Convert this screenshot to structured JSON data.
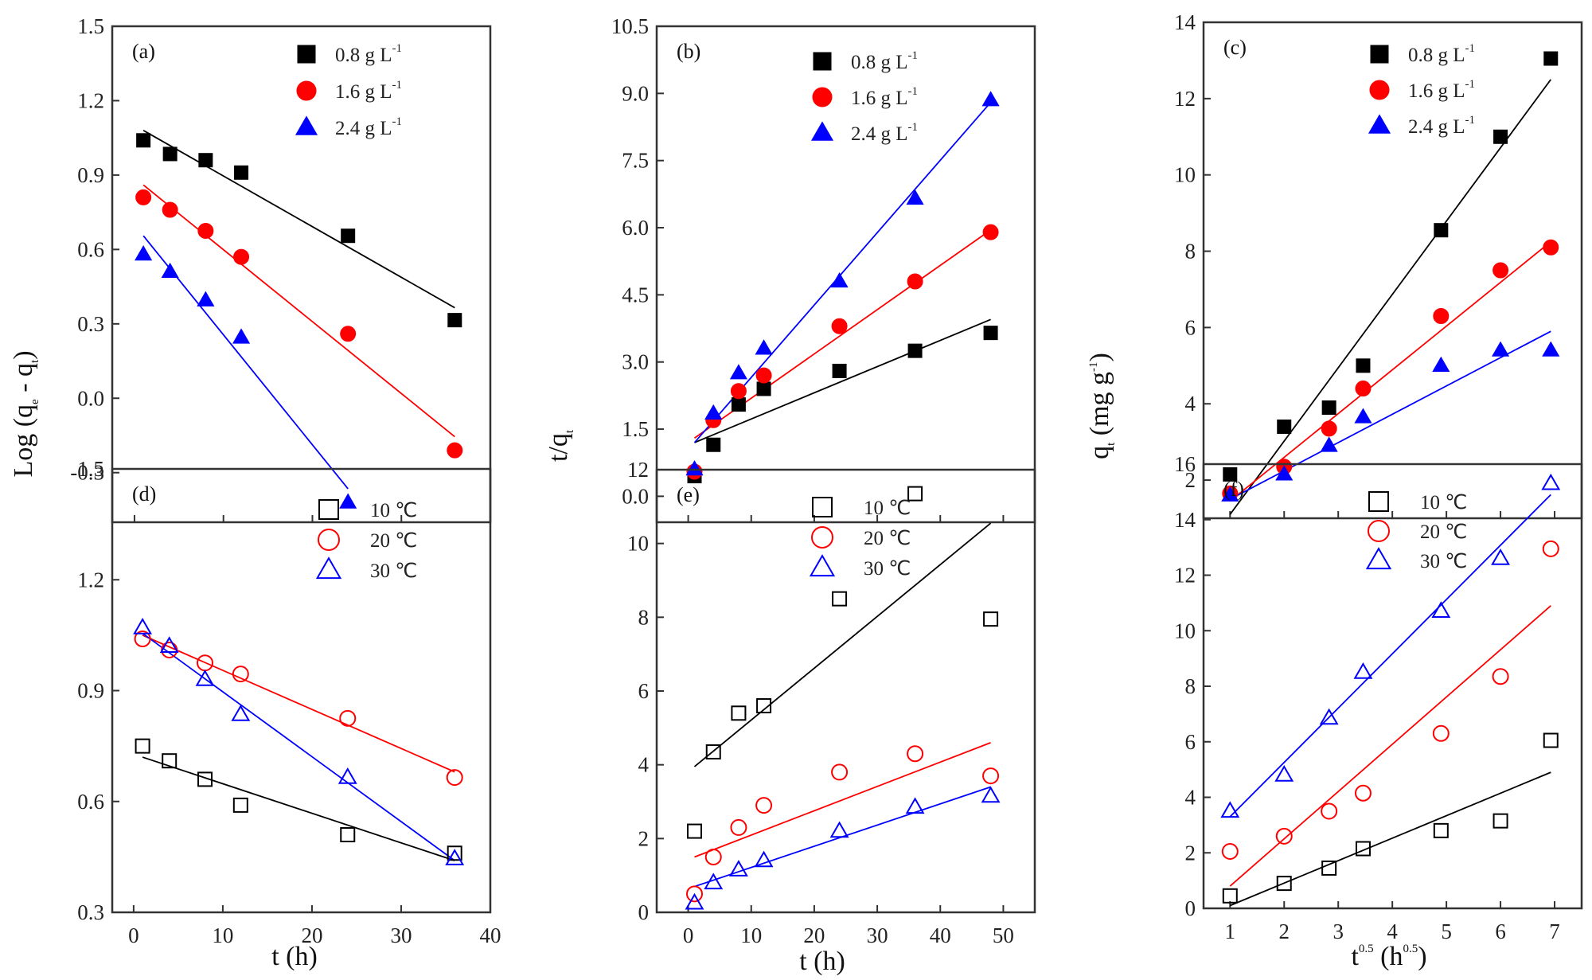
{
  "figure": {
    "shared_labels": {
      "row_top_left_ylabel": "Log (q",
      "log_ylabel_parts": [
        "Log (q",
        "e",
        " - q",
        "t",
        ")"
      ],
      "tq_ylabel_parts": [
        "t/q",
        "t"
      ],
      "qt_ylabel_parts": [
        "q",
        "t",
        " (mg g",
        "-1",
        ")"
      ],
      "xlabel_d": "t  (h)",
      "xlabel_e": "t (h)",
      "xlabel_f_parts": [
        "t",
        "0.5",
        " (h",
        "0.5",
        ")"
      ]
    }
  },
  "chart_data": [
    {
      "id": "a",
      "type": "scatter",
      "panel_tag": "(a)",
      "title": "",
      "xlabel": "",
      "ylabel": "Log (qe - qt)",
      "xlim": [
        -2.5,
        40
      ],
      "ylim": [
        -0.5,
        1.5
      ],
      "xticks": [
        0,
        10,
        20,
        30
      ],
      "xtick_labels_visible": false,
      "yticks": [
        1.5,
        1.2,
        0.9,
        0.6,
        0.3,
        0.0,
        -0.3
      ],
      "ytick_labels": [
        "1.5",
        "1.2",
        "0.9",
        "0.6",
        "0.3",
        "0.0",
        "-0.3"
      ],
      "grid": false,
      "legend_position": "top-right",
      "marker_fill": "filled",
      "series": [
        {
          "name": "0.8 g L",
          "sup": "-1",
          "color": "#000000",
          "marker": "square",
          "x": [
            1,
            4,
            8,
            12,
            24,
            36
          ],
          "y": [
            1.04,
            0.985,
            0.96,
            0.91,
            0.655,
            0.315
          ],
          "fit": [
            [
              1,
              1.08
            ],
            [
              36,
              0.365
            ]
          ]
        },
        {
          "name": "1.6 g L",
          "sup": "-1",
          "color": "#ff0000",
          "marker": "circle",
          "x": [
            1,
            4,
            8,
            12,
            24,
            36
          ],
          "y": [
            0.81,
            0.76,
            0.675,
            0.57,
            0.26,
            -0.21
          ],
          "fit": [
            [
              1,
              0.86
            ],
            [
              36,
              -0.155
            ]
          ]
        },
        {
          "name": "2.4 g L",
          "sup": "-1",
          "color": "#0000ff",
          "marker": "triangle",
          "x": [
            1,
            4,
            8,
            12,
            24
          ],
          "y": [
            0.58,
            0.51,
            0.395,
            0.245,
            -0.42
          ],
          "fit": [
            [
              1,
              0.655
            ],
            [
              24,
              -0.365
            ]
          ]
        }
      ]
    },
    {
      "id": "b",
      "type": "scatter",
      "panel_tag": "(b)",
      "title": "",
      "xlabel": "",
      "ylabel": "t/qt",
      "xlim": [
        -5,
        55
      ],
      "ylim": [
        -0.58,
        10.5
      ],
      "xticks": [
        0,
        10,
        20,
        30,
        40,
        50
      ],
      "xtick_labels_visible": false,
      "yticks": [
        10.5,
        9.0,
        7.5,
        6.0,
        4.5,
        3.0,
        1.5,
        0.0
      ],
      "ytick_labels": [
        "10.5",
        "9.0",
        "7.5",
        "6.0",
        "4.5",
        "3.0",
        "1.5",
        "0.0"
      ],
      "grid": false,
      "legend_position": "top-center",
      "marker_fill": "filled",
      "series": [
        {
          "name": "0.8 g L",
          "sup": "-1",
          "color": "#000000",
          "marker": "square",
          "x": [
            1,
            4,
            8,
            12,
            24,
            36,
            48
          ],
          "y": [
            0.45,
            1.15,
            2.05,
            2.4,
            2.8,
            3.25,
            3.65
          ],
          "fit": [
            [
              1,
              1.2
            ],
            [
              48,
              3.95
            ]
          ]
        },
        {
          "name": "1.6 g L",
          "sup": "-1",
          "color": "#ff0000",
          "marker": "circle",
          "x": [
            1,
            4,
            8,
            12,
            24,
            36,
            48
          ],
          "y": [
            0.55,
            1.7,
            2.35,
            2.7,
            3.8,
            4.8,
            5.9
          ],
          "fit": [
            [
              1,
              1.3
            ],
            [
              48,
              5.95
            ]
          ]
        },
        {
          "name": "2.4 g L",
          "sup": "-1",
          "color": "#0000ff",
          "marker": "triangle",
          "x": [
            1,
            4,
            8,
            12,
            24,
            36,
            48
          ],
          "y": [
            0.6,
            1.85,
            2.75,
            3.3,
            4.8,
            6.65,
            8.85
          ],
          "fit": [
            [
              1,
              1.2
            ],
            [
              48,
              8.8
            ]
          ]
        }
      ]
    },
    {
      "id": "c",
      "type": "scatter",
      "panel_tag": "(c)",
      "title": "",
      "xlabel": "",
      "ylabel": "qt (mg g-1)",
      "xlim": [
        0.51,
        7.5
      ],
      "ylim": [
        1.0,
        14
      ],
      "xticks": [
        1,
        2,
        3,
        4,
        5,
        6,
        7
      ],
      "xtick_labels_visible": false,
      "yticks": [
        14,
        12,
        10,
        8,
        6,
        4,
        2
      ],
      "ytick_labels": [
        "14",
        "12",
        "10",
        "8",
        "6",
        "4",
        "2"
      ],
      "grid": false,
      "legend_position": "top-center",
      "marker_fill": "filled",
      "series": [
        {
          "name": "0.8 g L",
          "sup": "-1",
          "color": "#000000",
          "marker": "square",
          "x": [
            1,
            2,
            2.83,
            3.46,
            4.9,
            6,
            6.93
          ],
          "y": [
            2.15,
            3.4,
            3.9,
            5.0,
            8.55,
            11.0,
            13.05
          ],
          "fit": [
            [
              1,
              1.1
            ],
            [
              6.93,
              12.5
            ]
          ]
        },
        {
          "name": "1.6 g L",
          "sup": "-1",
          "color": "#ff0000",
          "marker": "circle",
          "x": [
            1,
            2,
            2.83,
            3.46,
            4.9,
            6,
            6.93
          ],
          "y": [
            1.65,
            2.35,
            3.35,
            4.4,
            6.3,
            7.5,
            8.1
          ],
          "fit": [
            [
              1,
              1.45
            ],
            [
              6.93,
              8.25
            ]
          ]
        },
        {
          "name": "2.4 g L",
          "sup": "-1",
          "color": "#0000ff",
          "marker": "triangle",
          "x": [
            1,
            2,
            2.83,
            3.46,
            4.9,
            6,
            6.93
          ],
          "y": [
            1.6,
            2.15,
            2.9,
            3.65,
            5.0,
            5.4,
            5.4
          ],
          "fit": [
            [
              1,
              1.5
            ],
            [
              6.93,
              5.9
            ]
          ]
        }
      ]
    },
    {
      "id": "d",
      "type": "scatter",
      "panel_tag": "(d)",
      "title": "",
      "xlabel": "t  (h)",
      "ylabel": "Log (qe - qt)",
      "xlim": [
        -2.4,
        40
      ],
      "ylim": [
        0.3,
        1.5
      ],
      "xticks": [
        0,
        10,
        20,
        30,
        40
      ],
      "xtick_labels": [
        "0",
        "10",
        "20",
        "30",
        "40"
      ],
      "xtick_labels_visible": true,
      "yticks": [
        1.5,
        1.2,
        0.9,
        0.6,
        0.3
      ],
      "ytick_labels": [
        "1.5",
        "1.2",
        "0.9",
        "0.6",
        "0.3"
      ],
      "grid": false,
      "legend_position": "top-right",
      "marker_fill": "open",
      "series": [
        {
          "name": "10 ℃",
          "sup": "",
          "color": "#000000",
          "marker": "square",
          "x": [
            1,
            4,
            8,
            12,
            24,
            36
          ],
          "y": [
            0.75,
            0.71,
            0.66,
            0.59,
            0.51,
            0.46
          ],
          "fit": [
            [
              1,
              0.72
            ],
            [
              36,
              0.44
            ]
          ]
        },
        {
          "name": "20 ℃",
          "sup": "",
          "color": "#ff0000",
          "marker": "circle",
          "x": [
            1,
            4,
            8,
            12,
            24,
            36
          ],
          "y": [
            1.04,
            1.01,
            0.975,
            0.945,
            0.825,
            0.665
          ],
          "fit": [
            [
              1,
              1.05
            ],
            [
              36,
              0.68
            ]
          ]
        },
        {
          "name": "30 ℃",
          "sup": "",
          "color": "#0000ff",
          "marker": "triangle",
          "x": [
            1,
            4,
            8,
            12,
            24,
            36
          ],
          "y": [
            1.07,
            1.02,
            0.93,
            0.835,
            0.665,
            0.445
          ],
          "fit": [
            [
              1,
              1.055
            ],
            [
              36,
              0.44
            ]
          ]
        }
      ]
    },
    {
      "id": "e",
      "type": "scatter",
      "panel_tag": "(e)",
      "title": "",
      "xlabel": "t (h)",
      "ylabel": "t/qt",
      "xlim": [
        -5,
        55
      ],
      "ylim": [
        0,
        12
      ],
      "xticks": [
        0,
        10,
        20,
        30,
        40,
        50
      ],
      "xtick_labels": [
        "0",
        "10",
        "20",
        "30",
        "40",
        "50"
      ],
      "xtick_labels_visible": true,
      "yticks": [
        12,
        10,
        8,
        6,
        4,
        2,
        0
      ],
      "ytick_labels": [
        "12",
        "10",
        "8",
        "6",
        "4",
        "2",
        "0"
      ],
      "grid": false,
      "legend_position": "top-center",
      "marker_fill": "open",
      "series": [
        {
          "name": "10 ℃",
          "sup": "",
          "color": "#000000",
          "marker": "square",
          "x": [
            1,
            4,
            8,
            12,
            24,
            36,
            48
          ],
          "y": [
            2.2,
            4.35,
            5.4,
            5.6,
            8.5,
            11.35,
            7.95
          ],
          "fit": [
            [
              1,
              3.95
            ],
            [
              48,
              10.55
            ]
          ]
        },
        {
          "name": "20 ℃",
          "sup": "",
          "color": "#ff0000",
          "marker": "circle",
          "x": [
            1,
            4,
            8,
            12,
            24,
            36,
            48
          ],
          "y": [
            0.5,
            1.5,
            2.3,
            2.9,
            3.8,
            4.3,
            3.7
          ],
          "fit": [
            [
              1,
              1.5
            ],
            [
              48,
              4.6
            ]
          ]
        },
        {
          "name": "30 ℃",
          "sup": "",
          "color": "#0000ff",
          "marker": "triangle",
          "x": [
            1,
            4,
            8,
            12,
            24,
            36,
            48
          ],
          "y": [
            0.25,
            0.8,
            1.15,
            1.4,
            2.2,
            2.85,
            3.15
          ],
          "fit": [
            [
              1,
              0.7
            ],
            [
              48,
              3.4
            ]
          ]
        }
      ]
    },
    {
      "id": "f",
      "type": "scatter",
      "panel_tag": "(f)",
      "title": "",
      "xlabel": "t^0.5 (h^0.5)",
      "ylabel": "qt (mg g-1)",
      "xlim": [
        0.51,
        7.5
      ],
      "ylim": [
        0,
        16
      ],
      "xticks": [
        1,
        2,
        3,
        4,
        5,
        6,
        7
      ],
      "xtick_labels": [
        "1",
        "2",
        "3",
        "4",
        "5",
        "6",
        "7"
      ],
      "xtick_labels_visible": true,
      "yticks": [
        16,
        14,
        12,
        10,
        8,
        6,
        4,
        2,
        0
      ],
      "ytick_labels": [
        "16",
        "14",
        "12",
        "10",
        "8",
        "6",
        "4",
        "2",
        "0"
      ],
      "grid": false,
      "legend_position": "top-center",
      "marker_fill": "open",
      "series": [
        {
          "name": "10 ℃",
          "sup": "",
          "color": "#000000",
          "marker": "square",
          "x": [
            1,
            2,
            2.83,
            3.46,
            4.9,
            6,
            6.93
          ],
          "y": [
            0.45,
            0.9,
            1.45,
            2.15,
            2.8,
            3.15,
            6.05
          ],
          "fit": [
            [
              1,
              0.1
            ],
            [
              6.93,
              4.9
            ]
          ]
        },
        {
          "name": "20 ℃",
          "sup": "",
          "color": "#ff0000",
          "marker": "circle",
          "x": [
            1,
            2,
            2.83,
            3.46,
            4.9,
            6,
            6.93
          ],
          "y": [
            2.05,
            2.6,
            3.5,
            4.15,
            6.3,
            8.35,
            12.95
          ],
          "fit": [
            [
              1,
              0.8
            ],
            [
              6.93,
              10.9
            ]
          ]
        },
        {
          "name": "30 ℃",
          "sup": "",
          "color": "#0000ff",
          "marker": "triangle",
          "x": [
            1,
            2,
            2.83,
            3.46,
            4.9,
            6,
            6.93
          ],
          "y": [
            3.5,
            4.8,
            6.85,
            8.5,
            10.7,
            12.6,
            15.3
          ],
          "fit": [
            [
              1,
              3.3
            ],
            [
              6.93,
              14.9
            ]
          ]
        }
      ]
    }
  ]
}
